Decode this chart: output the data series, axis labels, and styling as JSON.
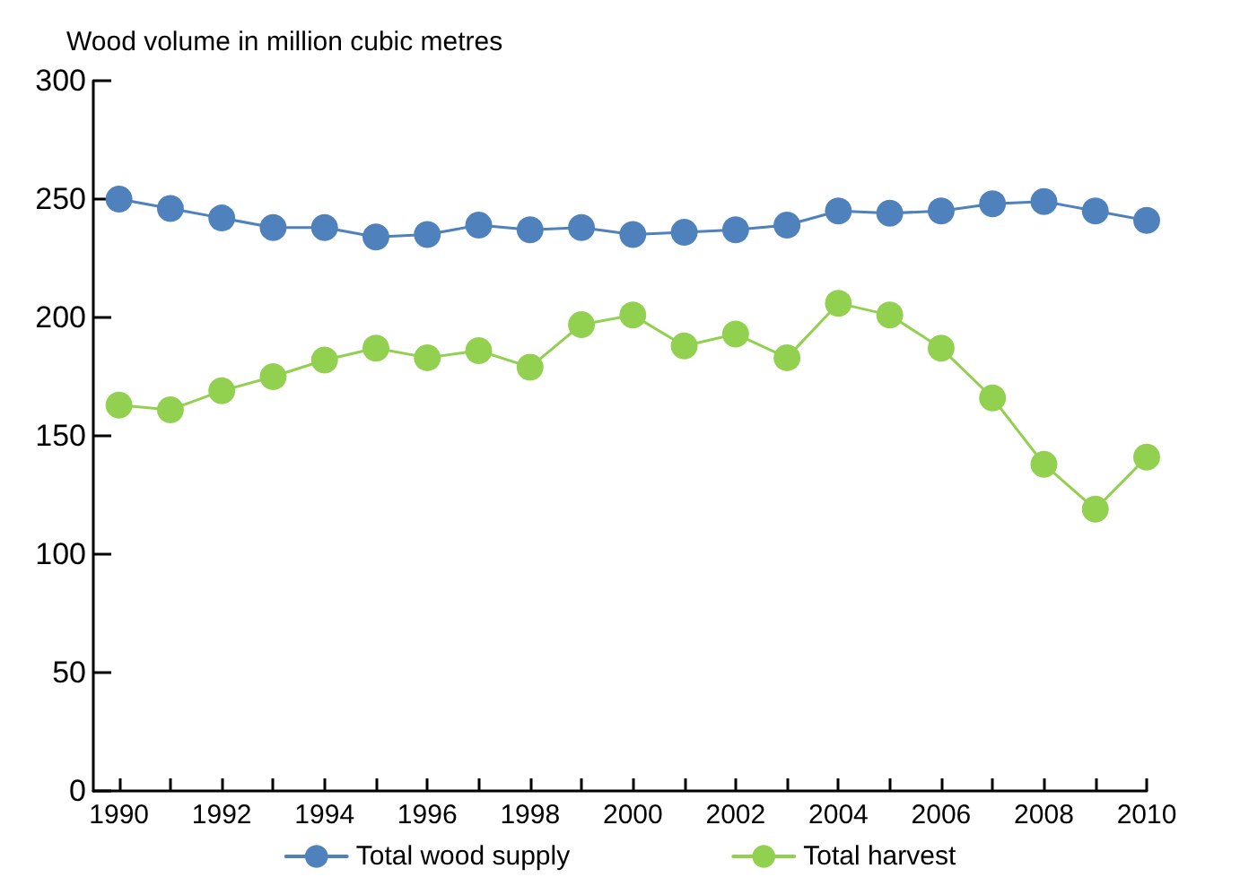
{
  "chart_data": {
    "type": "line",
    "ylabel": "Wood volume in million cubic metres",
    "x": [
      1990,
      1991,
      1992,
      1993,
      1994,
      1995,
      1996,
      1997,
      1998,
      1999,
      2000,
      2001,
      2002,
      2003,
      2004,
      2005,
      2006,
      2007,
      2008,
      2009,
      2010
    ],
    "series": [
      {
        "name": "Total wood supply",
        "color": "#4f81bd",
        "values": [
          250,
          246,
          242,
          238,
          238,
          234,
          235,
          239,
          237,
          238,
          235,
          236,
          237,
          239,
          245,
          244,
          245,
          248,
          249,
          245,
          241
        ]
      },
      {
        "name": "Total harvest",
        "color": "#92d050",
        "values": [
          163,
          161,
          169,
          175,
          182,
          187,
          183,
          186,
          179,
          197,
          201,
          188,
          193,
          183,
          206,
          201,
          187,
          166,
          138,
          119,
          141
        ]
      }
    ],
    "xlim": [
      1989.5,
      2010
    ],
    "xticks": [
      1990,
      {
        "value": 1991,
        "label": null
      },
      1992,
      {
        "value": 1993,
        "label": null
      },
      1994,
      {
        "value": 1995,
        "label": null
      },
      1996,
      {
        "value": 1997,
        "label": null
      },
      1998,
      {
        "value": 1999,
        "label": null
      },
      2000,
      {
        "value": 2001,
        "label": null
      },
      2002,
      {
        "value": 2003,
        "label": null
      },
      2004,
      {
        "value": 2005,
        "label": null
      },
      2006,
      {
        "value": 2007,
        "label": null
      },
      2008,
      {
        "value": 2009,
        "label": null
      },
      2010
    ],
    "ylim": [
      0,
      300
    ],
    "yticks": [
      0,
      50,
      100,
      150,
      200,
      250,
      300
    ],
    "grid": false,
    "legend": "bottom",
    "marker": "circle",
    "line_style": "solid"
  }
}
